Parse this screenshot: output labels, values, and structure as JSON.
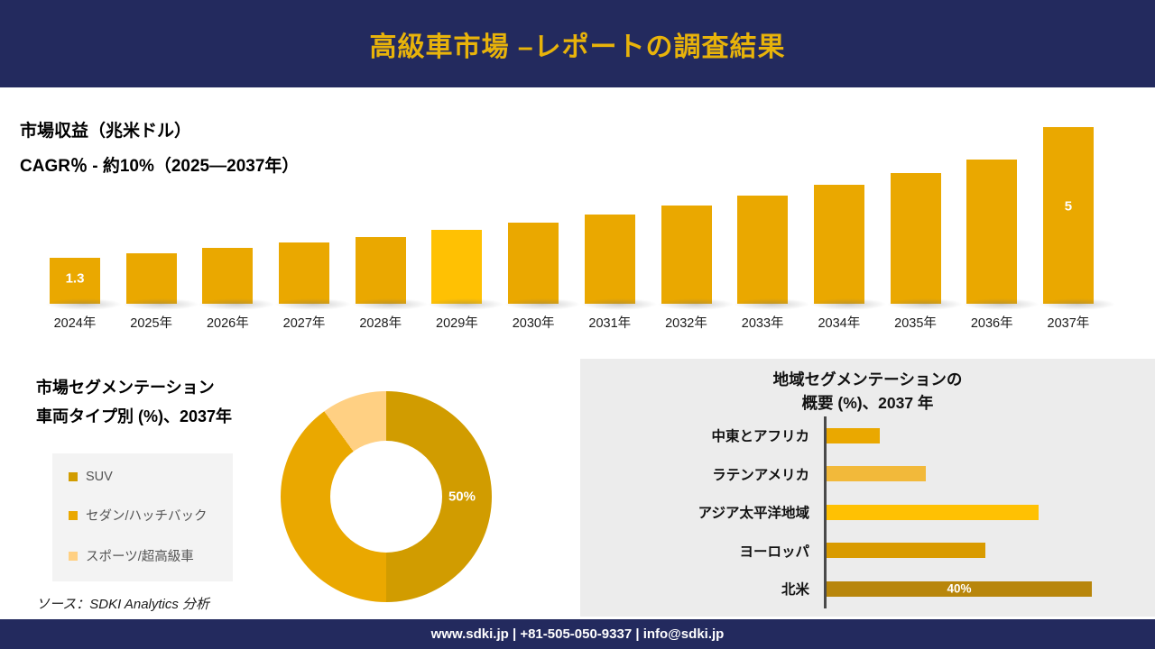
{
  "header": {
    "title": "高級車市場 –レポートの調査結果"
  },
  "colors": {
    "navy": "#232a5e",
    "gold": "#eaa800",
    "bright_gold": "#ffc103",
    "dark_gold": "#b8860b",
    "light_gold": "#ffd083",
    "title_gold": "#e8b30a",
    "panel_gray": "#ececec"
  },
  "chart_data": [
    {
      "id": "market-revenue",
      "type": "bar",
      "title": "市場収益（兆米ドル）",
      "subtitle": "CAGR％ - 約10%（2025―2037年）",
      "categories": [
        "2024年",
        "2025年",
        "2026年",
        "2027年",
        "2028年",
        "2029年",
        "2030年",
        "2031年",
        "2032年",
        "2033年",
        "2034年",
        "2035年",
        "2036年",
        "2037年"
      ],
      "values": [
        1.3,
        1.43,
        1.57,
        1.73,
        1.9,
        2.09,
        2.3,
        2.53,
        2.78,
        3.06,
        3.37,
        3.7,
        4.07,
        5
      ],
      "ylim": [
        0,
        5
      ],
      "data_labels": {
        "0": "1.3",
        "13": "5"
      },
      "highlight_index": 5,
      "bar_color": "#eaa800",
      "highlight_color": "#ffc103",
      "grid": false,
      "legend_position": "none"
    },
    {
      "id": "vehicle-type-donut",
      "type": "pie",
      "title_line1": "市場セグメンテーション",
      "title_line2": "車両タイプ別 (%)、2037年",
      "labels": [
        "SUV",
        "セダン/ハッチバック",
        "スポーツ/超高級車"
      ],
      "values": [
        50,
        40,
        10
      ],
      "colors": [
        "#d19c00",
        "#eaa800",
        "#ffd083"
      ],
      "center_label": "50%",
      "legend_position": "left"
    },
    {
      "id": "regional-overview",
      "type": "bar-horizontal",
      "title_line1": "地域セグメンテーションの",
      "title_line2": "概要 (%)、2037 年",
      "categories": [
        "中東とアフリカ",
        "ラテンアメリカ",
        "アジア太平洋地域",
        "ヨーロッパ",
        "北米"
      ],
      "values": [
        8,
        15,
        32,
        24,
        40
      ],
      "colors": [
        "#eaa800",
        "#f2b93a",
        "#ffc103",
        "#d99b00",
        "#b8860b"
      ],
      "xlim": [
        0,
        46
      ],
      "bar_label": "40%",
      "bar_label_index": 4,
      "grid": false,
      "legend_position": "none"
    }
  ],
  "source": "ソース：SDKI Analytics 分析",
  "footer": {
    "text": "www.sdki.jp | +81-505-050-9337 | info@sdki.jp"
  }
}
